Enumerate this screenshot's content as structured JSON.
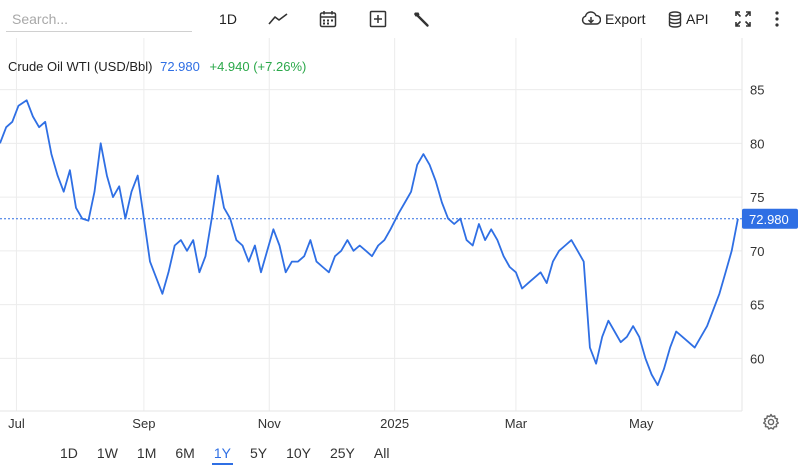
{
  "toolbar": {
    "search_placeholder": "Search...",
    "interval_label": "1D",
    "export_label": "Export",
    "api_label": "API"
  },
  "icons": {
    "chart_type": "line-chart-icon",
    "calendar": "calendar-icon",
    "add_indicator": "plus-box-icon",
    "tools": "wrench-icon",
    "export": "cloud-download-icon",
    "api": "database-icon",
    "fullscreen": "fullscreen-icon",
    "menu": "vertical-dots-icon",
    "settings": "gear-icon"
  },
  "ranges": [
    "1D",
    "1W",
    "1M",
    "6M",
    "1Y",
    "5Y",
    "10Y",
    "25Y",
    "All"
  ],
  "active_range": "1Y",
  "colors": {
    "line": "#2f6fe4",
    "change": "#2ba84a",
    "price_tag": "#2f6fe4",
    "grid": "#ececec"
  },
  "chart_data": {
    "type": "line",
    "title": "Crude Oil WTI (USD/Bbl)",
    "last_value": "72.980",
    "change": "+4.940 (+7.26%)",
    "price_tag": "72.980",
    "y_ticks": [
      60,
      65,
      70,
      75,
      80,
      85
    ],
    "ylim": [
      55.1,
      89.8
    ],
    "x_ticks": [
      {
        "label": "Jul",
        "date": "2024-07-01"
      },
      {
        "label": "Sep",
        "date": "2024-09-01"
      },
      {
        "label": "Nov",
        "date": "2024-11-01"
      },
      {
        "label": "2025",
        "date": "2025-01-01"
      },
      {
        "label": "Mar",
        "date": "2025-03-01"
      },
      {
        "label": "May",
        "date": "2025-05-01"
      }
    ],
    "xlim": [
      "2024-06-23",
      "2025-06-19"
    ],
    "series": [
      {
        "x": [
          "2024-06-23",
          "2024-06-26",
          "2024-06-29",
          "2024-07-02",
          "2024-07-06",
          "2024-07-09",
          "2024-07-12",
          "2024-07-15",
          "2024-07-18",
          "2024-07-21",
          "2024-07-24",
          "2024-07-27",
          "2024-07-30",
          "2024-08-02",
          "2024-08-05",
          "2024-08-08",
          "2024-08-11",
          "2024-08-14",
          "2024-08-17",
          "2024-08-20",
          "2024-08-23",
          "2024-08-26",
          "2024-08-29",
          "2024-09-01",
          "2024-09-04",
          "2024-09-07",
          "2024-09-10",
          "2024-09-13",
          "2024-09-16",
          "2024-09-19",
          "2024-09-22",
          "2024-09-25",
          "2024-09-28",
          "2024-10-01",
          "2024-10-04",
          "2024-10-07",
          "2024-10-10",
          "2024-10-13",
          "2024-10-16",
          "2024-10-19",
          "2024-10-22",
          "2024-10-25",
          "2024-10-28",
          "2024-10-31",
          "2024-11-03",
          "2024-11-06",
          "2024-11-09",
          "2024-11-12",
          "2024-11-15",
          "2024-11-18",
          "2024-11-21",
          "2024-11-24",
          "2024-11-27",
          "2024-11-30",
          "2024-12-03",
          "2024-12-06",
          "2024-12-09",
          "2024-12-12",
          "2024-12-15",
          "2024-12-18",
          "2024-12-21",
          "2024-12-24",
          "2024-12-27",
          "2024-12-30",
          "2025-01-03",
          "2025-01-06",
          "2025-01-09",
          "2025-01-12",
          "2025-01-15",
          "2025-01-18",
          "2025-01-21",
          "2025-01-24",
          "2025-01-27",
          "2025-01-30",
          "2025-02-02",
          "2025-02-05",
          "2025-02-08",
          "2025-02-11",
          "2025-02-14",
          "2025-02-17",
          "2025-02-20",
          "2025-02-23",
          "2025-02-26",
          "2025-03-01",
          "2025-03-04",
          "2025-03-07",
          "2025-03-10",
          "2025-03-13",
          "2025-03-16",
          "2025-03-19",
          "2025-03-22",
          "2025-03-25",
          "2025-03-28",
          "2025-03-31",
          "2025-04-03",
          "2025-04-06",
          "2025-04-09",
          "2025-04-12",
          "2025-04-15",
          "2025-04-18",
          "2025-04-21",
          "2025-04-24",
          "2025-04-27",
          "2025-04-30",
          "2025-05-03",
          "2025-05-06",
          "2025-05-09",
          "2025-05-12",
          "2025-05-15",
          "2025-05-18",
          "2025-05-21",
          "2025-05-24",
          "2025-05-27",
          "2025-05-30",
          "2025-06-02",
          "2025-06-05",
          "2025-06-08",
          "2025-06-11",
          "2025-06-14",
          "2025-06-17"
        ],
        "y": [
          80.0,
          81.5,
          82.0,
          83.5,
          84.0,
          82.5,
          81.5,
          82.0,
          79.0,
          77.0,
          75.5,
          77.5,
          74.0,
          73.0,
          72.8,
          75.5,
          80.0,
          77.0,
          75.0,
          76.0,
          73.0,
          75.5,
          77.0,
          73.0,
          69.0,
          67.5,
          66.0,
          68.0,
          70.5,
          71.0,
          70.0,
          71.0,
          68.0,
          69.5,
          73.0,
          77.0,
          74.0,
          73.0,
          71.0,
          70.5,
          69.0,
          70.5,
          68.0,
          70.0,
          72.0,
          70.5,
          68.0,
          69.0,
          69.0,
          69.5,
          71.0,
          69.0,
          68.5,
          68.0,
          69.5,
          70.0,
          71.0,
          70.0,
          70.5,
          70.0,
          69.5,
          70.5,
          71.0,
          72.0,
          73.5,
          74.5,
          75.5,
          78.0,
          79.0,
          78.0,
          76.5,
          74.5,
          73.0,
          72.5,
          73.0,
          71.0,
          70.5,
          72.5,
          71.0,
          72.0,
          71.0,
          69.5,
          68.5,
          68.0,
          66.5,
          67.0,
          67.5,
          68.0,
          67.0,
          69.0,
          70.0,
          70.5,
          71.0,
          70.0,
          69.0,
          61.0,
          59.5,
          62.0,
          63.5,
          62.5,
          61.5,
          62.0,
          63.0,
          62.0,
          60.0,
          58.5,
          57.5,
          59.0,
          61.0,
          62.5,
          62.0,
          61.5,
          61.0,
          62.0,
          63.0,
          64.5,
          66.0,
          68.0,
          70.0,
          72.98
        ]
      }
    ]
  }
}
